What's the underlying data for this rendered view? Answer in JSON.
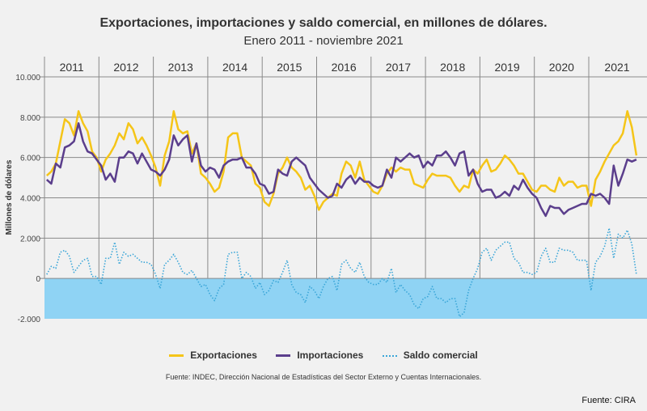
{
  "title": "Exportaciones, importaciones y saldo comercial, en millones de dólares.",
  "subtitle": "Enero 2011 - noviembre 2021",
  "source": "Fuente: INDEC, Dirección Nacional de Estadísticas del Sector Externo y Cuentas Internacionales.",
  "credit": "Fuente: CIRA",
  "colors": {
    "exportaciones": "#f5c518",
    "importaciones": "#5b3e8c",
    "saldo": "#3aa6d8",
    "negative_band": "#8fd3f4",
    "grid": "#8a8a8a",
    "background": "#f1f1f1"
  },
  "chart_data": {
    "type": "line",
    "title": "Exportaciones, importaciones y saldo comercial, en millones de dólares.",
    "subtitle": "Enero 2011 - noviembre 2021",
    "xlabel": "",
    "ylabel": "Millones de dólares",
    "ylim": [
      -2000,
      10000
    ],
    "yticks": [
      -2000,
      0,
      2000,
      4000,
      6000,
      8000,
      10000
    ],
    "ytick_labels": [
      "-2.000",
      "0",
      "2.000",
      "4.000",
      "6.000",
      "8.000",
      "10.000"
    ],
    "year_labels": [
      "2011",
      "2012",
      "2013",
      "2014",
      "2015",
      "2016",
      "2017",
      "2018",
      "2019",
      "2020",
      "2021"
    ],
    "months_per_year": [
      12,
      12,
      12,
      12,
      12,
      12,
      12,
      12,
      12,
      12,
      11
    ],
    "grid": true,
    "legend_position": "bottom",
    "series": [
      {
        "name": "Exportaciones",
        "style": "solid",
        "values": [
          5100,
          5300,
          5700,
          6800,
          7900,
          7700,
          7100,
          8300,
          7700,
          7300,
          6300,
          6000,
          5300,
          5900,
          6200,
          6600,
          7200,
          6900,
          7700,
          7400,
          6700,
          7000,
          6600,
          6100,
          5500,
          4600,
          6100,
          6800,
          8300,
          7400,
          7200,
          7300,
          6200,
          6700,
          5200,
          5000,
          4700,
          4300,
          4500,
          5300,
          7000,
          7200,
          7200,
          6000,
          5800,
          5600,
          4700,
          4500,
          3800,
          3600,
          4200,
          5200,
          5500,
          6000,
          5500,
          5300,
          5000,
          4400,
          4600,
          4100,
          3400,
          3800,
          4000,
          4200,
          4100,
          5200,
          5800,
          5600,
          5000,
          5800,
          4900,
          4600,
          4300,
          4200,
          4600,
          5200,
          5500,
          5300,
          5500,
          5400,
          5400,
          4700,
          4600,
          4500,
          4900,
          5200,
          5100,
          5100,
          5100,
          5000,
          4600,
          4300,
          4600,
          4500,
          5400,
          5200,
          5600,
          5900,
          5300,
          5400,
          5700,
          6100,
          5900,
          5600,
          5200,
          5200,
          4800,
          4400,
          4300,
          4600,
          4600,
          4400,
          4300,
          5000,
          4600,
          4800,
          4800,
          4500,
          4600,
          4600,
          3600,
          4900,
          5300,
          5800,
          6200,
          6600,
          6800,
          7200,
          8300,
          7500,
          6100
        ]
      },
      {
        "name": "Importaciones",
        "style": "solid",
        "values": [
          4900,
          4700,
          5700,
          5500,
          6500,
          6600,
          6800,
          7700,
          6800,
          6300,
          6200,
          5900,
          5600,
          4900,
          5200,
          4800,
          6000,
          6000,
          6300,
          6200,
          5700,
          6200,
          5800,
          5400,
          5300,
          5100,
          5400,
          5900,
          7100,
          6600,
          6900,
          7100,
          5800,
          6700,
          5600,
          5300,
          5500,
          5400,
          5000,
          5600,
          5800,
          5900,
          5900,
          6000,
          5500,
          5500,
          5200,
          4700,
          4600,
          4200,
          4300,
          5400,
          5200,
          5100,
          5800,
          6000,
          5800,
          5600,
          5000,
          4700,
          4400,
          4200,
          4000,
          4100,
          4700,
          4500,
          4900,
          5100,
          4700,
          5000,
          4800,
          4800,
          4600,
          4500,
          4600,
          5400,
          5000,
          6000,
          5800,
          6000,
          6200,
          6000,
          6100,
          5500,
          5800,
          5600,
          6100,
          6100,
          6300,
          6000,
          5600,
          6200,
          6300,
          5100,
          5400,
          4700,
          4300,
          4400,
          4400,
          4000,
          4100,
          4300,
          4100,
          4600,
          4400,
          4900,
          4500,
          4200,
          4000,
          3500,
          3100,
          3600,
          3500,
          3500,
          3200,
          3400,
          3500,
          3600,
          3700,
          3700,
          4200,
          4100,
          4200,
          4000,
          3700,
          5600,
          4600,
          5200,
          5900,
          5800,
          5900
        ]
      },
      {
        "name": "Saldo comercial",
        "style": "dotted",
        "values": [
          200,
          600,
          500,
          1300,
          1400,
          1100,
          300,
          600,
          900,
          1000,
          100,
          100,
          -300,
          1000,
          1000,
          1800,
          700,
          1300,
          1100,
          1200,
          1000,
          800,
          800,
          700,
          200,
          -500,
          700,
          900,
          1200,
          800,
          300,
          200,
          400,
          0,
          -400,
          -300,
          -800,
          -1100,
          -500,
          -300,
          1200,
          1300,
          1300,
          0,
          300,
          100,
          -500,
          -200,
          -800,
          -600,
          -100,
          -200,
          300,
          900,
          -300,
          -700,
          -800,
          -1200,
          -400,
          -600,
          -1000,
          -400,
          0,
          100,
          -600,
          700,
          900,
          500,
          300,
          800,
          100,
          -200,
          -300,
          -300,
          0,
          -200,
          500,
          -700,
          -300,
          -600,
          -800,
          -1300,
          -1500,
          -1000,
          -900,
          -400,
          -1000,
          -1000,
          -1200,
          -1000,
          -1000,
          -1900,
          -1700,
          -600,
          0,
          500,
          1300,
          1500,
          900,
          1400,
          1600,
          1800,
          1800,
          1000,
          800,
          300,
          300,
          200,
          300,
          1100,
          1500,
          800,
          800,
          1500,
          1400,
          1400,
          1300,
          900,
          900,
          900,
          -600,
          800,
          1100,
          1600,
          2500,
          1000,
          2200,
          2000,
          2400,
          1700,
          200
        ]
      }
    ]
  }
}
